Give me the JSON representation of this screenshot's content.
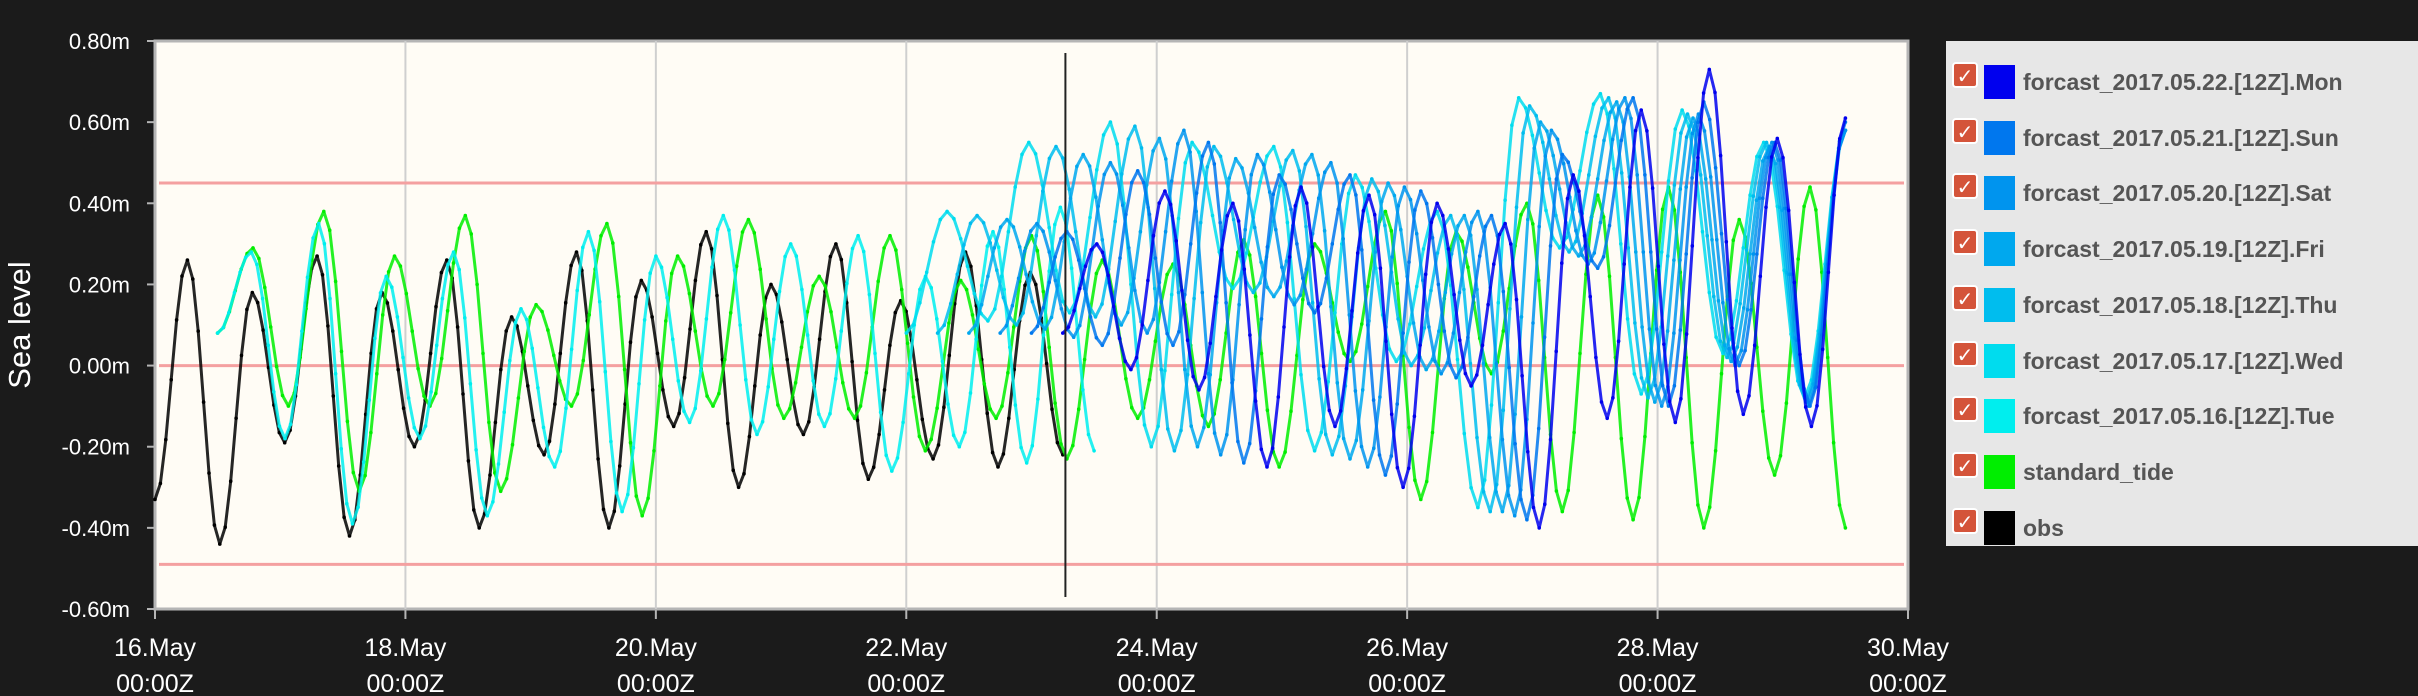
{
  "chart_data": {
    "type": "line",
    "title": "",
    "xlabel": "",
    "ylabel": "Sea level",
    "ylim": [
      -0.6,
      0.8
    ],
    "xlim": [
      "2017-05-16 00:00Z",
      "2017-05-30 00:00Z"
    ],
    "y_ticks": [
      "0.80m",
      "0.60m",
      "0.40m",
      "0.20m",
      "0.00m",
      "-0.20m",
      "-0.40m",
      "-0.60m"
    ],
    "x_ticks": [
      {
        "date": "16.May",
        "time": "00:00Z"
      },
      {
        "date": "18.May",
        "time": "00:00Z"
      },
      {
        "date": "20.May",
        "time": "00:00Z"
      },
      {
        "date": "22.May",
        "time": "00:00Z"
      },
      {
        "date": "24.May",
        "time": "00:00Z"
      },
      {
        "date": "26.May",
        "time": "00:00Z"
      },
      {
        "date": "28.May",
        "time": "00:00Z"
      },
      {
        "date": "30.May",
        "time": "00:00Z"
      }
    ],
    "threshold_lines": [
      0.45,
      0.0,
      -0.49
    ],
    "current_time_marker": "2017-05-23 06:30Z",
    "grid": true,
    "legend_position": "right",
    "series": [
      {
        "name": "forcast_2017.05.22.[12Z].Mon",
        "color": "#0000ee",
        "start": "2017-05-23 06:00Z",
        "end": "2017-05-29 12:00Z",
        "highs": [
          0.3,
          0.43,
          0.4,
          0.44,
          0.42,
          0.4,
          0.35,
          0.47,
          0.63,
          0.73,
          0.56,
          0.61
        ],
        "lows": [
          -0.01,
          -0.06,
          -0.25,
          -0.15,
          -0.3,
          -0.05,
          -0.4,
          -0.13,
          -0.14,
          -0.12,
          -0.15
        ]
      },
      {
        "name": "forcast_2017.05.21.[12Z].Sun",
        "color": "#0077ee",
        "start": "2017-05-23 00:00Z",
        "end": "2017-05-29 12:00Z",
        "highs": [
          0.33,
          0.48,
          0.55,
          0.47,
          0.47,
          0.43,
          0.37,
          0.52,
          0.66,
          0.65,
          0.55,
          0.6
        ],
        "lows": [
          0.05,
          0.05,
          -0.24,
          0.13,
          -0.27,
          -0.03,
          -0.38,
          0.24,
          -0.1,
          0.0,
          -0.1
        ]
      },
      {
        "name": "forcast_2017.05.20.[12Z].Sat",
        "color": "#0094ee",
        "start": "2017-05-22 18:00Z",
        "end": "2017-05-29 12:00Z",
        "highs": [
          0.35,
          0.5,
          0.58,
          0.52,
          0.5,
          0.44,
          0.38,
          0.58,
          0.66,
          0.62,
          0.55,
          0.58
        ],
        "lows": [
          0.07,
          0.08,
          -0.22,
          0.15,
          -0.25,
          -0.02,
          -0.37,
          0.25,
          -0.1,
          0.0,
          -0.1
        ]
      },
      {
        "name": "forcast_2017.05.19.[12Z].Fri",
        "color": "#00a8ee",
        "start": "2017-05-22 12:00Z",
        "end": "2017-05-29 12:00Z",
        "highs": [
          0.36,
          0.52,
          0.56,
          0.51,
          0.52,
          0.45,
          0.37,
          0.6,
          0.65,
          0.61,
          0.54,
          0.58
        ],
        "lows": [
          0.09,
          0.1,
          -0.2,
          0.17,
          -0.23,
          -0.01,
          -0.36,
          0.27,
          -0.09,
          0.01,
          -0.09
        ]
      },
      {
        "name": "forcast_2017.05.18.[12Z].Thu",
        "color": "#00bdee",
        "start": "2017-05-22 06:00Z",
        "end": "2017-05-29 12:00Z",
        "highs": [
          0.37,
          0.54,
          0.59,
          0.54,
          0.53,
          0.46,
          0.37,
          0.64,
          0.66,
          0.62,
          0.55,
          0.58
        ],
        "lows": [
          0.1,
          0.12,
          -0.21,
          0.18,
          -0.22,
          0.0,
          -0.36,
          0.28,
          -0.08,
          0.02,
          -0.09
        ]
      },
      {
        "name": "forcast_2017.05.17.[12Z].Wed",
        "color": "#00dcee",
        "start": "2017-05-22 00:00Z",
        "end": "2017-05-29 12:00Z",
        "highs": [
          0.38,
          0.55,
          0.6,
          0.55,
          0.54,
          0.47,
          0.38,
          0.66,
          0.67,
          0.63,
          0.55,
          0.58
        ],
        "lows": [
          0.11,
          0.13,
          -0.2,
          0.19,
          -0.21,
          0.01,
          -0.35,
          0.29,
          -0.07,
          0.03,
          -0.08
        ]
      },
      {
        "name": "forcast_2017.05.16.[12Z].Tue",
        "color": "#00eeee",
        "start": "2017-05-16 12:00Z",
        "end": "2017-05-23 12:00Z",
        "highs": [
          0.28,
          0.35,
          0.22,
          0.28,
          0.14,
          0.33,
          0.27,
          0.37,
          0.3,
          0.32,
          0.22,
          0.33,
          0.39
        ],
        "lows": [
          -0.18,
          -0.39,
          -0.18,
          -0.37,
          -0.25,
          -0.36,
          -0.14,
          -0.17,
          -0.15,
          -0.26,
          -0.2,
          -0.24,
          -0.21
        ]
      },
      {
        "name": "standard_tide",
        "color": "#00ee00",
        "start": "2017-05-16 12:00Z",
        "end": "2017-05-29 12:00Z",
        "highs": [
          0.29,
          0.38,
          0.27,
          0.37,
          0.15,
          0.35,
          0.27,
          0.36,
          0.22,
          0.32,
          0.21,
          0.32,
          0.26,
          0.25,
          0.31,
          0.3,
          0.38,
          0.33,
          0.4,
          0.42,
          0.44,
          0.36,
          0.44
        ],
        "lows": [
          -0.1,
          -0.31,
          -0.1,
          -0.31,
          -0.1,
          -0.37,
          -0.1,
          -0.13,
          -0.13,
          -0.21,
          -0.13,
          -0.23,
          -0.13,
          -0.15,
          -0.25,
          0.01,
          -0.33,
          -0.02,
          -0.36,
          -0.38,
          -0.4,
          -0.27,
          -0.4
        ]
      },
      {
        "name": "obs",
        "color": "#000000",
        "start": "2017-05-16 00:00Z",
        "end": "2017-05-23 06:00Z",
        "highs": [
          0.26,
          0.18,
          0.27,
          0.18,
          0.26,
          0.12,
          0.28,
          0.21,
          0.33,
          0.2,
          0.3,
          0.16,
          0.28,
          0.23
        ],
        "lows": [
          -0.44,
          -0.19,
          -0.42,
          -0.2,
          -0.4,
          -0.22,
          -0.4,
          -0.15,
          -0.3,
          -0.17,
          -0.28,
          -0.23,
          -0.25,
          -0.22
        ]
      }
    ]
  },
  "legend": {
    "items": [
      {
        "label": "forcast_2017.05.22.[12Z].Mon",
        "color": "#0000ee",
        "checked": true
      },
      {
        "label": "forcast_2017.05.21.[12Z].Sun",
        "color": "#0077ee",
        "checked": true
      },
      {
        "label": "forcast_2017.05.20.[12Z].Sat",
        "color": "#0094ee",
        "checked": true
      },
      {
        "label": "forcast_2017.05.19.[12Z].Fri",
        "color": "#00a8ee",
        "checked": true
      },
      {
        "label": "forcast_2017.05.18.[12Z].Thu",
        "color": "#00bdee",
        "checked": true
      },
      {
        "label": "forcast_2017.05.17.[12Z].Wed",
        "color": "#00dcee",
        "checked": true
      },
      {
        "label": "forcast_2017.05.16.[12Z].Tue",
        "color": "#00eeee",
        "checked": true
      },
      {
        "label": "standard_tide",
        "color": "#00ee00",
        "checked": true
      },
      {
        "label": "obs",
        "color": "#000000",
        "checked": true
      }
    ]
  },
  "colors": {
    "page_background": "#1b1b1b",
    "plot_background": "#fffcf5",
    "threshold_line": "#f4a0a0",
    "grid_line": "#cfcfcf",
    "axis_text": "#ffffff",
    "legend_background": "#e7e7e7"
  }
}
